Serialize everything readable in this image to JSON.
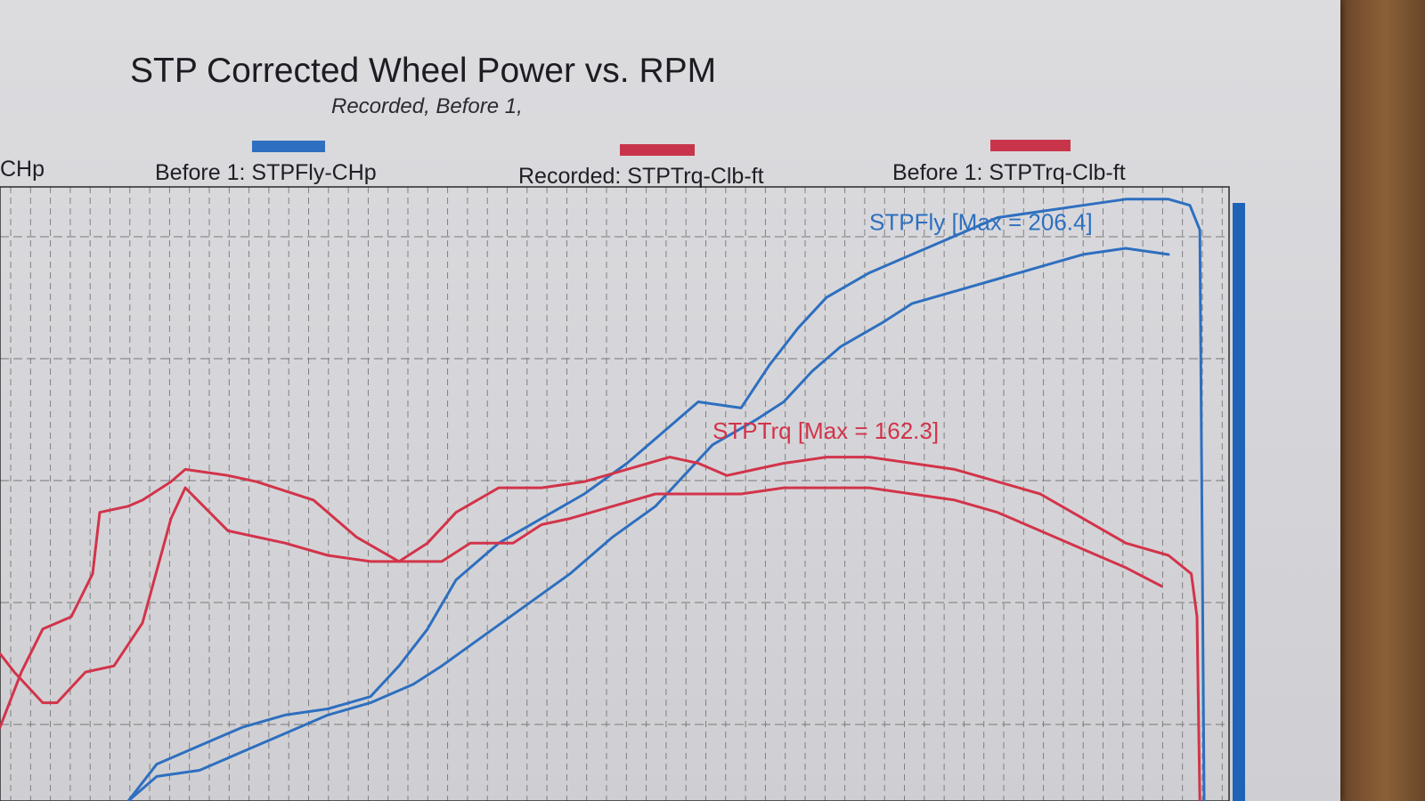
{
  "title": "STP Corrected Wheel Power vs. RPM",
  "subtitle": "Recorded, Before 1,",
  "legend": [
    {
      "label": "CHp",
      "color": ""
    },
    {
      "label": "Before 1: STPFly-CHp",
      "color": "#2e6fbf"
    },
    {
      "label": "Recorded: STPTrq-Clb-ft",
      "color": "#c8354a"
    },
    {
      "label": "Before 1: STPTrq-Clb-ft",
      "color": "#c8354a"
    }
  ],
  "annotations": {
    "power_max": "STPFly [Max = 206.4]",
    "torque_max": "STPTrq [Max = 162.3]"
  },
  "colors": {
    "power_line": "#2e6fbf",
    "torque_line": "#d2344a",
    "grid": "#777777",
    "paper": "#d8d8dc"
  },
  "chart_data": {
    "type": "line",
    "title": "STP Corrected Wheel Power vs. RPM",
    "subtitle": "Recorded, Before 1,",
    "x_units": "relative position across visible plot (0 = left edge, 1 = right edge)",
    "y_units": "relative height (0 = bottom edge, 1 = top edge)",
    "grid": true,
    "legend_position": "top",
    "series": [
      {
        "name": "Before 1: STPFly-CHp",
        "color": "#2e6fbf",
        "width": 3,
        "x": [
          0.09,
          0.11,
          0.14,
          0.17,
          0.2,
          0.23,
          0.26,
          0.29,
          0.31,
          0.34,
          0.37,
          0.4,
          0.43,
          0.46,
          0.48,
          0.5,
          0.53,
          0.55,
          0.57,
          0.59,
          0.62,
          0.64,
          0.67,
          0.7,
          0.73,
          0.76,
          0.79,
          0.82
        ],
        "y": [
          0.0,
          0.04,
          0.05,
          0.08,
          0.11,
          0.14,
          0.16,
          0.19,
          0.22,
          0.27,
          0.32,
          0.37,
          0.43,
          0.48,
          0.53,
          0.58,
          0.62,
          0.65,
          0.7,
          0.74,
          0.78,
          0.81,
          0.83,
          0.85,
          0.87,
          0.89,
          0.9,
          0.89
        ]
      },
      {
        "name": "STPFly",
        "color": "#2e6fbf",
        "width": 3,
        "x": [
          0.09,
          0.11,
          0.14,
          0.17,
          0.2,
          0.23,
          0.26,
          0.28,
          0.3,
          0.32,
          0.35,
          0.38,
          0.41,
          0.44,
          0.47,
          0.49,
          0.52,
          0.54,
          0.56,
          0.58,
          0.61,
          0.64,
          0.67,
          0.7,
          0.73,
          0.76,
          0.79,
          0.82,
          0.835,
          0.842,
          0.845
        ],
        "y": [
          0.0,
          0.06,
          0.09,
          0.12,
          0.14,
          0.15,
          0.17,
          0.22,
          0.28,
          0.36,
          0.42,
          0.46,
          0.5,
          0.55,
          0.61,
          0.65,
          0.64,
          0.71,
          0.77,
          0.82,
          0.86,
          0.89,
          0.92,
          0.95,
          0.96,
          0.97,
          0.98,
          0.98,
          0.97,
          0.93,
          0.0
        ]
      },
      {
        "name": "Before 1: STPTrq-Clb-ft",
        "color": "#d2344a",
        "width": 3,
        "x": [
          0.0,
          0.01,
          0.03,
          0.04,
          0.06,
          0.08,
          0.1,
          0.12,
          0.13,
          0.16,
          0.2,
          0.23,
          0.26,
          0.29,
          0.31,
          0.33,
          0.36,
          0.38,
          0.4,
          0.43,
          0.46,
          0.49,
          0.52,
          0.55,
          0.58,
          0.61,
          0.64,
          0.67,
          0.7,
          0.73,
          0.76,
          0.79,
          0.815
        ],
        "y": [
          0.24,
          0.21,
          0.16,
          0.16,
          0.21,
          0.22,
          0.29,
          0.46,
          0.51,
          0.44,
          0.42,
          0.4,
          0.39,
          0.39,
          0.39,
          0.42,
          0.42,
          0.45,
          0.46,
          0.48,
          0.5,
          0.5,
          0.5,
          0.51,
          0.51,
          0.51,
          0.5,
          0.49,
          0.47,
          0.44,
          0.41,
          0.38,
          0.35
        ]
      },
      {
        "name": "STPTrq",
        "color": "#d2344a",
        "width": 3,
        "x": [
          0.0,
          0.015,
          0.03,
          0.05,
          0.065,
          0.07,
          0.09,
          0.1,
          0.12,
          0.13,
          0.16,
          0.18,
          0.22,
          0.25,
          0.28,
          0.3,
          0.32,
          0.35,
          0.38,
          0.41,
          0.44,
          0.47,
          0.49,
          0.51,
          0.53,
          0.55,
          0.58,
          0.61,
          0.64,
          0.67,
          0.7,
          0.73,
          0.76,
          0.79,
          0.82,
          0.836,
          0.84,
          0.842
        ],
        "y": [
          0.12,
          0.21,
          0.28,
          0.3,
          0.37,
          0.47,
          0.48,
          0.49,
          0.52,
          0.54,
          0.53,
          0.52,
          0.49,
          0.43,
          0.39,
          0.42,
          0.47,
          0.51,
          0.51,
          0.52,
          0.54,
          0.56,
          0.55,
          0.53,
          0.54,
          0.55,
          0.56,
          0.56,
          0.55,
          0.54,
          0.52,
          0.5,
          0.46,
          0.42,
          0.4,
          0.37,
          0.3,
          0.0
        ]
      }
    ],
    "labels": [
      {
        "text": "STPFly [Max = 206.4]",
        "x": 0.61,
        "y": 0.93,
        "color": "#2e6fbf"
      },
      {
        "text": "STPTrq [Max = 162.3]",
        "x": 0.5,
        "y": 0.59,
        "color": "#d2344a"
      }
    ]
  }
}
